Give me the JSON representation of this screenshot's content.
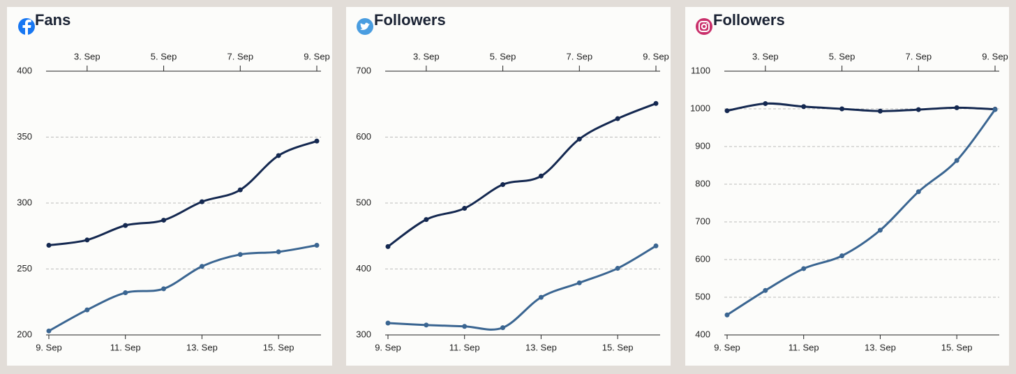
{
  "chart_data": [
    {
      "type": "line",
      "title": "Fans",
      "categories": [
        "9. Sep",
        null,
        "11. Sep",
        null,
        "13. Sep",
        null,
        "15. Sep",
        null
      ],
      "top_categories": [
        null,
        "3. Sep",
        null,
        "5. Sep",
        null,
        "7. Sep",
        null,
        "9. Sep"
      ],
      "ylim": [
        200,
        400
      ],
      "yticks": [
        200,
        250,
        300,
        350,
        400
      ],
      "grid": true,
      "series": [
        {
          "color": "#142850",
          "values": [
            268,
            272,
            283,
            287,
            301,
            310,
            336,
            347
          ]
        },
        {
          "color": "#3a6591",
          "values": [
            203,
            219,
            232,
            235,
            252,
            261,
            263,
            268
          ]
        }
      ]
    },
    {
      "type": "line",
      "title": "Followers",
      "categories": [
        "9. Sep",
        null,
        "11. Sep",
        null,
        "13. Sep",
        null,
        "15. Sep",
        null
      ],
      "top_categories": [
        null,
        "3. Sep",
        null,
        "5. Sep",
        null,
        "7. Sep",
        null,
        "9. Sep"
      ],
      "ylim": [
        300,
        700
      ],
      "yticks": [
        300,
        400,
        500,
        600,
        700
      ],
      "grid": true,
      "series": [
        {
          "color": "#142850",
          "values": [
            434,
            475,
            492,
            528,
            541,
            597,
            628,
            651
          ]
        },
        {
          "color": "#3a6591",
          "values": [
            318,
            315,
            313,
            311,
            357,
            379,
            401,
            435
          ]
        }
      ]
    },
    {
      "type": "line",
      "title": "Followers",
      "categories": [
        "9. Sep",
        null,
        "11. Sep",
        null,
        "13. Sep",
        null,
        "15. Sep",
        null
      ],
      "top_categories": [
        null,
        "3. Sep",
        null,
        "5. Sep",
        null,
        "7. Sep",
        null,
        "9. Sep"
      ],
      "ylim": [
        400,
        1100
      ],
      "yticks": [
        400,
        500,
        600,
        700,
        800,
        900,
        1000,
        1100
      ],
      "grid": true,
      "series": [
        {
          "color": "#142850",
          "values": [
            995,
            1014,
            1006,
            1000,
            994,
            998,
            1003,
            999
          ]
        },
        {
          "color": "#3a6591",
          "values": [
            453,
            518,
            576,
            610,
            678,
            780,
            863,
            998
          ]
        }
      ]
    }
  ]
}
